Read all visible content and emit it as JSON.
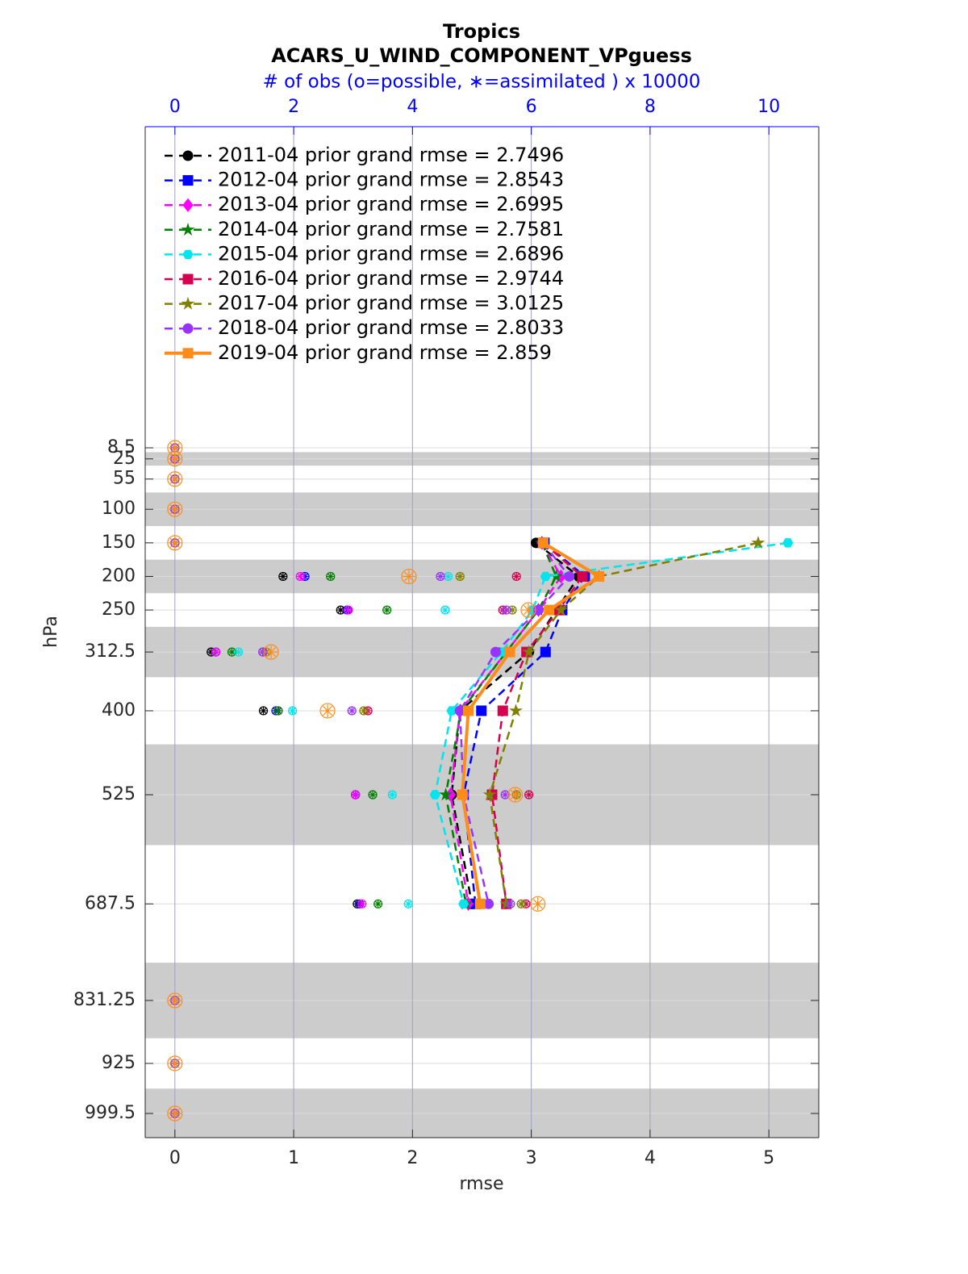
{
  "chart_data": {
    "type": "profile",
    "title": "Tropics",
    "subtitle": "ACARS_U_WIND_COMPONENT_VPguess",
    "x2_label": "# of obs (o=possible, ∗=assimilated ) x 10000",
    "x_label": "rmse",
    "y_label": "hPa",
    "xlim": [
      -0.25,
      5.42
    ],
    "xticks": [
      0,
      1,
      2,
      3,
      4,
      5
    ],
    "x2lim": [
      -0.5,
      10.84
    ],
    "x2ticks": [
      0,
      2,
      4,
      6,
      8,
      10
    ],
    "ylim": [
      -469.6,
      1035.5
    ],
    "y_direction": "reverse",
    "yticks": [
      8.5,
      25,
      55,
      100,
      150,
      200,
      250,
      312.5,
      400,
      525,
      687.5,
      831.25,
      925,
      999.5
    ],
    "levels": [
      8.5,
      25,
      55,
      100,
      150,
      200,
      250,
      312.5,
      400,
      525,
      687.5,
      831.25,
      925,
      999.5
    ],
    "bands": [
      [
        15,
        35
      ],
      [
        75,
        125
      ],
      [
        175,
        225
      ],
      [
        275,
        350
      ],
      [
        450,
        600
      ],
      [
        775,
        887.5
      ],
      [
        962.5,
        1050
      ]
    ],
    "band_color": "#cccccc",
    "grid": true,
    "legend": "upper left",
    "series": [
      {
        "name": "2011-04 prior grand rmse = 2.7496",
        "color": "#000000",
        "marker": "circle",
        "line": "dashed",
        "values": [
          null,
          null,
          null,
          null,
          3.04,
          3.4,
          3.21,
          2.98,
          2.4,
          2.33,
          2.5,
          null,
          null,
          null
        ],
        "obs_possible": [
          0,
          0,
          0,
          0,
          0,
          1.82,
          2.79,
          0.61,
          1.49,
          3.04,
          3.07,
          0,
          0,
          0
        ],
        "obs_assimilated": [
          0,
          0,
          0,
          0,
          0,
          1.82,
          2.79,
          0.61,
          1.49,
          3.04,
          3.07,
          0,
          0,
          0
        ]
      },
      {
        "name": "2012-04 prior grand rmse = 2.8543",
        "color": "#0000ff",
        "marker": "square",
        "line": "dashed",
        "values": [
          null,
          null,
          null,
          null,
          3.11,
          3.45,
          3.26,
          3.12,
          2.58,
          2.43,
          2.53,
          null,
          null,
          null
        ],
        "obs_possible": [
          0,
          0,
          0,
          0,
          0,
          2.19,
          2.9,
          0.69,
          1.7,
          3.04,
          3.11,
          0,
          0,
          0
        ],
        "obs_assimilated": [
          0,
          0,
          0,
          0,
          0,
          2.19,
          2.9,
          0.69,
          1.7,
          3.04,
          3.11,
          0,
          0,
          0
        ]
      },
      {
        "name": "2013-04 prior grand rmse = 2.6995",
        "color": "#ff00ff",
        "marker": "diamond",
        "line": "dashed",
        "values": [
          null,
          null,
          null,
          null,
          3.09,
          3.25,
          3.06,
          2.79,
          2.4,
          2.32,
          2.47,
          null,
          null,
          null
        ],
        "obs_possible": [
          0,
          0,
          0,
          0,
          0,
          2.11,
          2.92,
          0.69,
          1.74,
          3.04,
          3.15,
          0,
          0,
          0
        ],
        "obs_assimilated": [
          0,
          0,
          0,
          0,
          0,
          2.11,
          2.92,
          0.69,
          1.74,
          3.04,
          3.15,
          0,
          0,
          0
        ]
      },
      {
        "name": "2014-04 prior grand rmse = 2.7581",
        "color": "#008000",
        "marker": "star",
        "line": "dashed",
        "values": [
          null,
          null,
          null,
          null,
          3.09,
          3.21,
          3.06,
          2.79,
          2.41,
          2.28,
          2.45,
          null,
          null,
          null
        ],
        "obs_possible": [
          0,
          0,
          0,
          0,
          0,
          2.62,
          3.57,
          0.96,
          1.74,
          3.33,
          3.42,
          0,
          0,
          0
        ],
        "obs_assimilated": [
          0,
          0,
          0,
          0,
          0,
          2.62,
          3.57,
          0.96,
          1.74,
          3.33,
          3.42,
          0,
          0,
          0
        ]
      },
      {
        "name": "2015-04 prior grand rmse = 2.6896",
        "color": "#00e5ee",
        "marker": "hexagon",
        "line": "dashed",
        "values": [
          null,
          null,
          null,
          null,
          5.16,
          3.12,
          3.01,
          2.75,
          2.33,
          2.19,
          2.43,
          null,
          null,
          null
        ],
        "obs_possible": [
          0,
          0,
          0,
          0,
          0,
          4.6,
          4.55,
          1.07,
          1.98,
          3.66,
          3.93,
          0,
          0,
          0
        ],
        "obs_assimilated": [
          0,
          0,
          0,
          0,
          0,
          4.6,
          4.55,
          1.07,
          1.98,
          3.66,
          3.93,
          0,
          0,
          0
        ]
      },
      {
        "name": "2016-04 prior grand rmse = 2.9744",
        "color": "#d6004f",
        "marker": "square",
        "line": "dashed",
        "values": [
          null,
          null,
          null,
          null,
          3.1,
          3.43,
          3.23,
          2.96,
          2.76,
          2.67,
          2.79,
          null,
          null,
          null
        ],
        "obs_possible": [
          0,
          0,
          0,
          0,
          0,
          5.75,
          5.52,
          1.48,
          3.25,
          5.96,
          5.91,
          0,
          0,
          0
        ],
        "obs_assimilated": [
          0,
          0,
          0,
          0,
          0,
          5.75,
          5.52,
          1.48,
          3.25,
          5.96,
          5.91,
          0,
          0,
          0
        ]
      },
      {
        "name": "2017-04 prior grand rmse = 3.0125",
        "color": "#808000",
        "marker": "star",
        "line": "dashed",
        "values": [
          null,
          null,
          null,
          null,
          4.91,
          3.57,
          3.25,
          2.98,
          2.87,
          2.65,
          2.79,
          null,
          null,
          null
        ],
        "obs_possible": [
          0,
          0,
          0,
          0,
          0,
          4.8,
          5.68,
          1.54,
          3.18,
          5.75,
          5.83,
          0,
          0,
          0
        ],
        "obs_assimilated": [
          0,
          0,
          0,
          0,
          0,
          4.8,
          5.68,
          1.54,
          3.18,
          5.75,
          5.83,
          0,
          0,
          0
        ]
      },
      {
        "name": "2018-04 prior grand rmse = 2.8033",
        "color": "#9933ff",
        "marker": "circle",
        "line": "dashed",
        "values": [
          null,
          null,
          null,
          null,
          3.1,
          3.32,
          3.06,
          2.7,
          2.4,
          2.43,
          2.64,
          null,
          null,
          null
        ],
        "obs_possible": [
          0,
          0,
          0,
          0,
          0,
          4.47,
          5.58,
          1.48,
          2.98,
          5.56,
          5.65,
          0,
          0,
          0
        ],
        "obs_assimilated": [
          0,
          0,
          0,
          0,
          0,
          4.47,
          5.58,
          1.48,
          2.98,
          5.56,
          5.65,
          0,
          0,
          0
        ]
      },
      {
        "name": "2019-04 prior grand rmse = 2.859",
        "color": "#ff8c1a",
        "marker": "square",
        "line": "solid",
        "values": [
          null,
          null,
          null,
          null,
          3.1,
          3.57,
          3.15,
          2.82,
          2.47,
          2.42,
          2.57,
          null,
          null,
          null
        ],
        "obs_possible": [
          0,
          0,
          0,
          0,
          0,
          3.94,
          5.95,
          1.62,
          2.57,
          5.73,
          6.11,
          0,
          0,
          0
        ],
        "obs_assimilated": [
          0,
          0,
          0,
          0,
          0,
          3.94,
          5.95,
          1.62,
          2.57,
          5.73,
          6.11,
          0,
          0,
          0
        ]
      }
    ]
  }
}
